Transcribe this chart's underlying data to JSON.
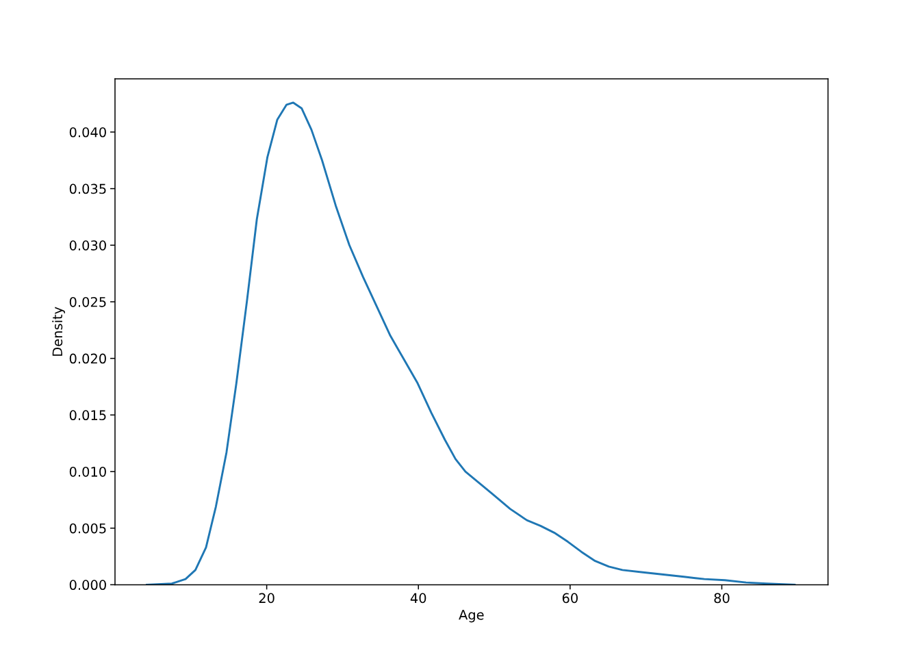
{
  "chart_data": {
    "type": "line",
    "xlabel": "Age",
    "ylabel": "Density",
    "x": [
      4.2,
      7.5,
      9.3,
      10.6,
      12.0,
      13.3,
      14.7,
      16.0,
      17.4,
      18.7,
      20.1,
      21.4,
      22.6,
      23.5,
      24.6,
      25.9,
      27.3,
      29.1,
      30.9,
      32.7,
      34.5,
      36.3,
      38.1,
      39.9,
      41.7,
      43.5,
      44.9,
      46.2,
      48.0,
      49.8,
      52.1,
      54.3,
      56.1,
      57.9,
      59.7,
      61.5,
      63.3,
      65.1,
      66.9,
      69.6,
      72.3,
      75.0,
      77.7,
      80.4,
      83.2,
      85.9,
      89.6
    ],
    "series": [
      {
        "color": "#1f77b4",
        "values": [
          0,
          0.0001,
          0.0005,
          0.0013,
          0.0033,
          0.0069,
          0.0117,
          0.0178,
          0.0251,
          0.0323,
          0.0378,
          0.0411,
          0.0424,
          0.0426,
          0.0421,
          0.0402,
          0.0375,
          0.0335,
          0.03,
          0.0272,
          0.0246,
          0.022,
          0.0199,
          0.0178,
          0.0152,
          0.0128,
          0.0111,
          0.01,
          0.009,
          0.008,
          0.0067,
          0.0057,
          0.0052,
          0.0046,
          0.0038,
          0.0029,
          0.0021,
          0.0016,
          0.0013,
          0.0011,
          0.0009,
          0.0007,
          0.0005,
          0.0004,
          0.0002,
          0.0001,
          0
        ]
      }
    ],
    "xlim": [
      0,
      94
    ],
    "xticks": [
      20,
      40,
      60,
      80
    ],
    "ylim": [
      0,
      0.0447
    ],
    "yticks": [
      {
        "value": 0,
        "label": "0.000"
      },
      {
        "value": 0.005,
        "label": "0.005"
      },
      {
        "value": 0.01,
        "label": "0.010"
      },
      {
        "value": 0.015,
        "label": "0.015"
      },
      {
        "value": 0.02,
        "label": "0.020"
      },
      {
        "value": 0.025,
        "label": "0.025"
      },
      {
        "value": 0.03,
        "label": "0.030"
      },
      {
        "value": 0.035,
        "label": "0.035"
      },
      {
        "value": 0.04,
        "label": "0.040"
      }
    ],
    "grid": false,
    "legend": false
  }
}
